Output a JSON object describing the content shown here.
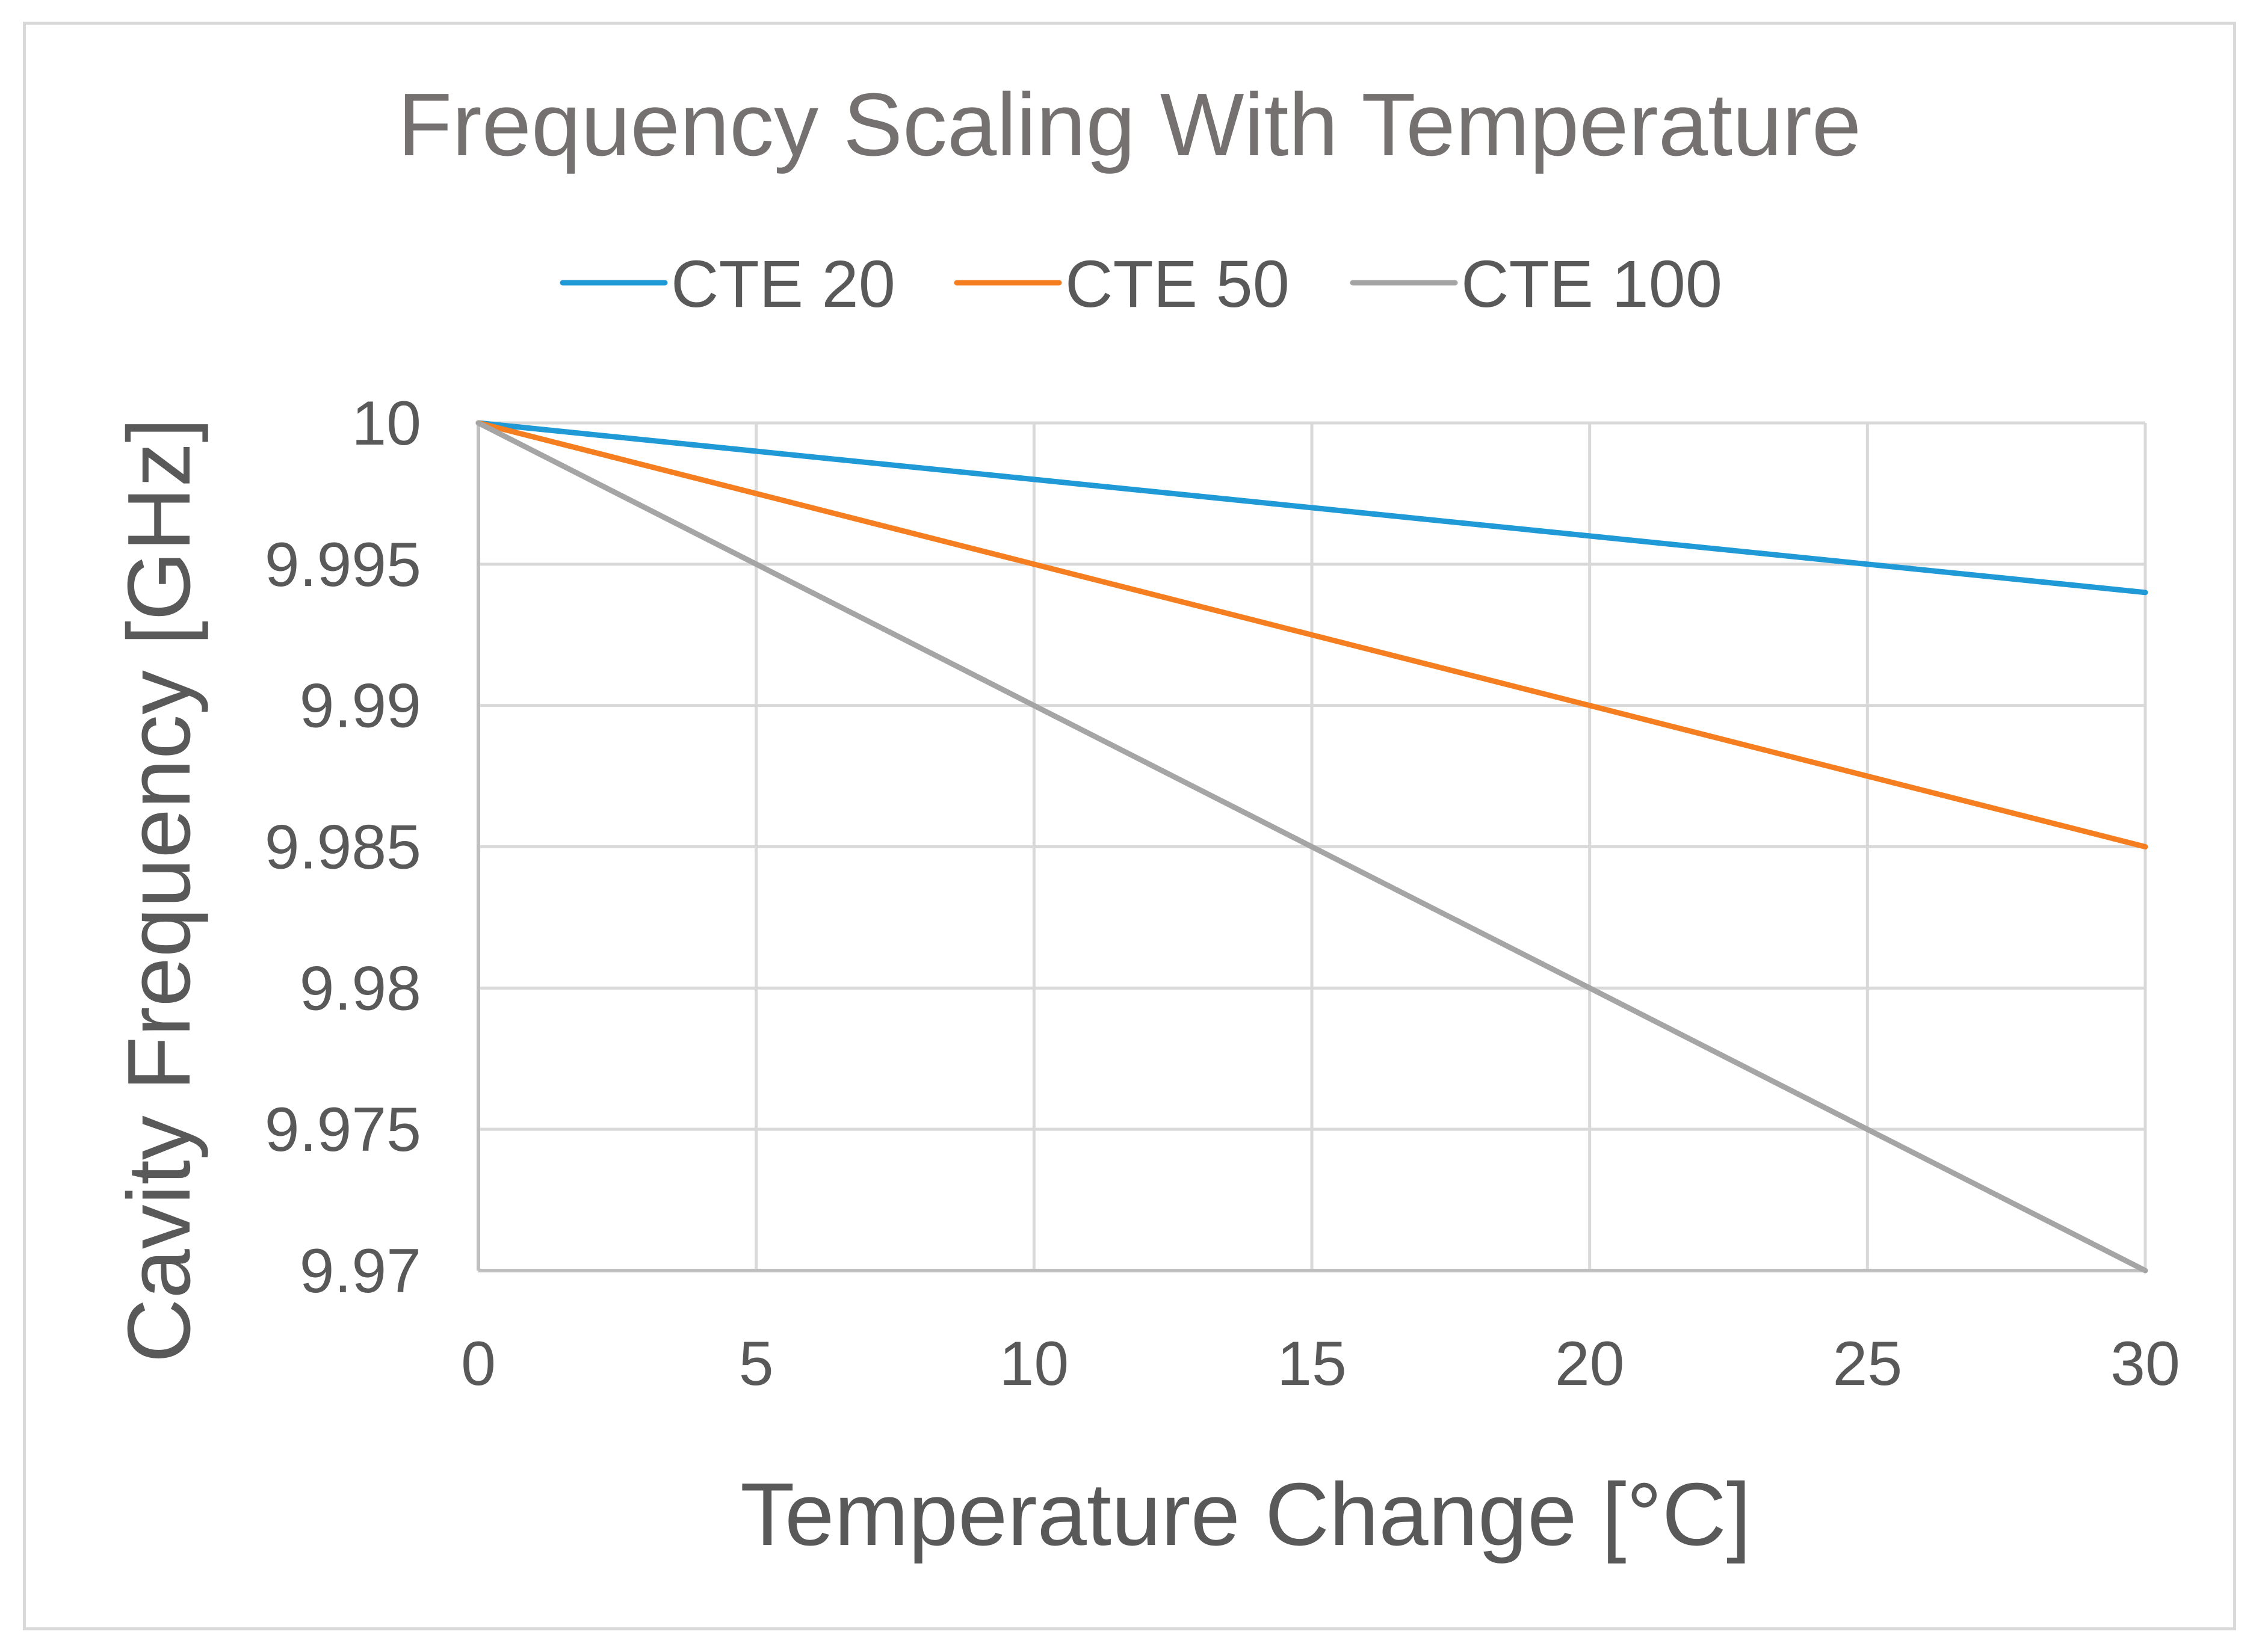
{
  "chart_data": {
    "type": "line",
    "title": "Frequency Scaling With Temperature",
    "xlabel": "Temperature Change [°C]",
    "ylabel": "Cavity Frequency [GHz]",
    "x": [
      0,
      5,
      10,
      15,
      20,
      25,
      30
    ],
    "xlim": [
      0,
      30
    ],
    "ylim": [
      9.97,
      10
    ],
    "xticks": [
      "0",
      "5",
      "10",
      "15",
      "20",
      "25",
      "30"
    ],
    "yticks": [
      "9.97",
      "9.975",
      "9.98",
      "9.985",
      "9.99",
      "9.995",
      "10"
    ],
    "grid": true,
    "legend_position": "top",
    "series": [
      {
        "name": "CTE 20",
        "color": "#1f9ad6",
        "values": [
          10,
          9.999,
          9.998,
          9.997,
          9.996,
          9.995,
          9.994
        ]
      },
      {
        "name": "CTE 50",
        "color": "#f57f20",
        "values": [
          10,
          9.9975,
          9.995,
          9.9925,
          9.99,
          9.9875,
          9.985
        ]
      },
      {
        "name": "CTE 100",
        "color": "#a5a5a5",
        "values": [
          10,
          9.995,
          9.99,
          9.985,
          9.98,
          9.975,
          9.97
        ]
      }
    ]
  }
}
